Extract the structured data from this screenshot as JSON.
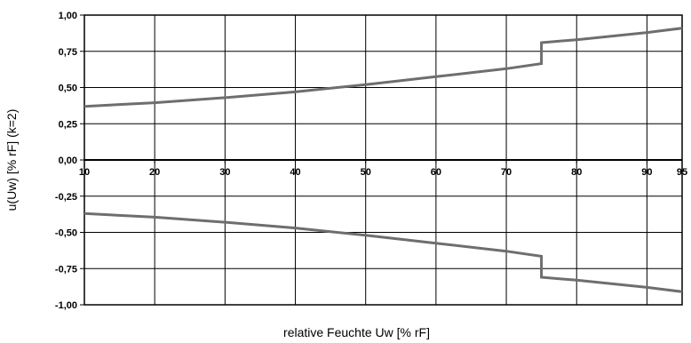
{
  "chart_data": {
    "type": "line",
    "title": "",
    "xlabel": "relative Feuchte Uw [% rF]",
    "ylabel": "u(Uw) [% rF] (k=2)",
    "xlim": [
      10,
      95
    ],
    "ylim": [
      -1.0,
      1.0
    ],
    "x_ticks": [
      "10",
      "20",
      "30",
      "40",
      "50",
      "60",
      "70",
      "80",
      "90",
      "95"
    ],
    "x_tick_values": [
      10,
      20,
      30,
      40,
      50,
      60,
      70,
      80,
      90,
      95
    ],
    "y_ticks": [
      "1,00",
      "0,75",
      "0,50",
      "0,25",
      "0,00",
      "-0,25",
      "-0,50",
      "-0,75",
      "-1,00"
    ],
    "y_tick_values": [
      1.0,
      0.75,
      0.5,
      0.25,
      0.0,
      -0.25,
      -0.5,
      -0.75,
      -1.0
    ],
    "grid": true,
    "line_color": "#6e6e6e",
    "series": [
      {
        "values_x": [
          10,
          20,
          30,
          40,
          50,
          60,
          70,
          75,
          75,
          80,
          90,
          95
        ],
        "values_y": [
          0.37,
          0.395,
          0.43,
          0.47,
          0.52,
          0.575,
          0.63,
          0.665,
          0.81,
          0.83,
          0.88,
          0.91
        ]
      },
      {
        "values_x": [
          10,
          20,
          30,
          40,
          50,
          60,
          70,
          75,
          75,
          80,
          90,
          95
        ],
        "values_y": [
          -0.37,
          -0.395,
          -0.43,
          -0.47,
          -0.52,
          -0.575,
          -0.63,
          -0.665,
          -0.81,
          -0.83,
          -0.88,
          -0.91
        ]
      }
    ]
  }
}
